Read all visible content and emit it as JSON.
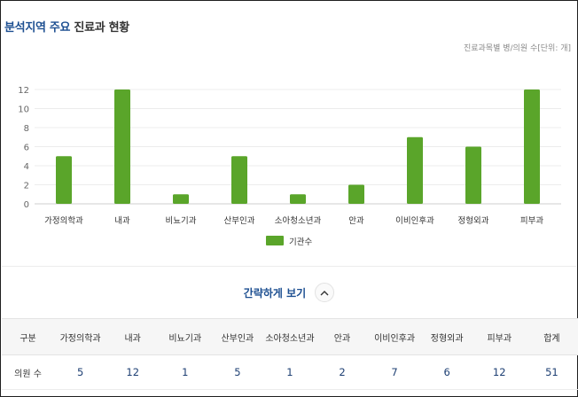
{
  "header": {
    "title_highlight": "분석지역 주요",
    "title_rest": " 진료과 현황",
    "unit_note": "진료과목별 병/의원 수[단위: 개]"
  },
  "chart_data": {
    "type": "bar",
    "categories": [
      "가정의학과",
      "내과",
      "비뇨기과",
      "산부인과",
      "소아청소년과",
      "안과",
      "이비인후과",
      "정형외과",
      "피부과"
    ],
    "series": [
      {
        "name": "기관수",
        "values": [
          5,
          12,
          1,
          5,
          1,
          2,
          7,
          6,
          12
        ],
        "color": "#5aa52a"
      }
    ],
    "yticks": [
      0,
      2,
      4,
      6,
      8,
      10,
      12
    ],
    "ylim": [
      0,
      12
    ],
    "grid": true,
    "legend_position": "bottom-center",
    "title": "",
    "xlabel": "",
    "ylabel": ""
  },
  "toggle": {
    "label": "간략하게 보기",
    "icon": "chevron-up-icon"
  },
  "table": {
    "headers": [
      "구분",
      "가정의학과",
      "내과",
      "비뇨기과",
      "산부인과",
      "소아청소년과",
      "안과",
      "이비인후과",
      "정형외과",
      "피부과",
      "합계"
    ],
    "rows": [
      [
        "의원 수",
        "5",
        "12",
        "1",
        "5",
        "1",
        "2",
        "7",
        "6",
        "12",
        "51"
      ]
    ]
  },
  "colors": {
    "accent": "#1d4f91",
    "bar": "#5aa52a"
  }
}
